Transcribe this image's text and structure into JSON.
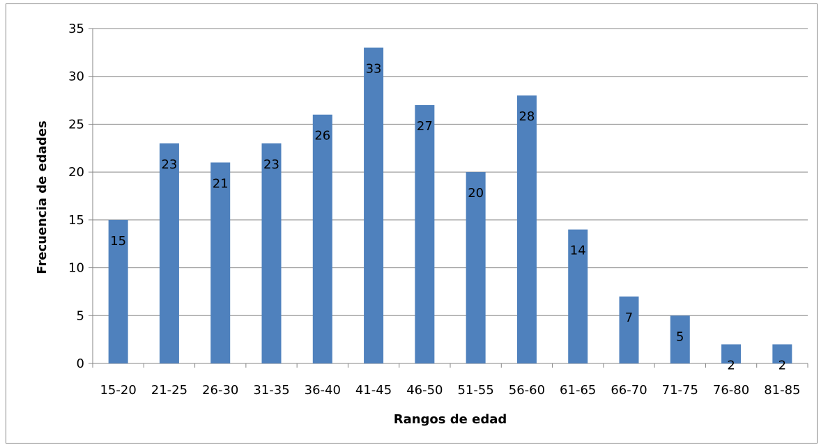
{
  "chart_data": {
    "type": "bar",
    "title": "",
    "xlabel": "Rangos de edad",
    "ylabel": "Frecuencia de edades",
    "categories": [
      "15-20",
      "21-25",
      "26-30",
      "31-35",
      "36-40",
      "41-45",
      "46-50",
      "51-55",
      "56-60",
      "61-65",
      "66-70",
      "71-75",
      "76-80",
      "81-85"
    ],
    "values": [
      15,
      23,
      21,
      23,
      26,
      33,
      27,
      20,
      28,
      14,
      7,
      5,
      2,
      2
    ],
    "ylim": [
      0,
      35
    ],
    "yticks": [
      0,
      5,
      10,
      15,
      20,
      25,
      30,
      35
    ],
    "grid": true,
    "legend": "none",
    "colors": {
      "bar": "#4F81BD",
      "grid": "#868686",
      "axis": "#868686"
    }
  }
}
